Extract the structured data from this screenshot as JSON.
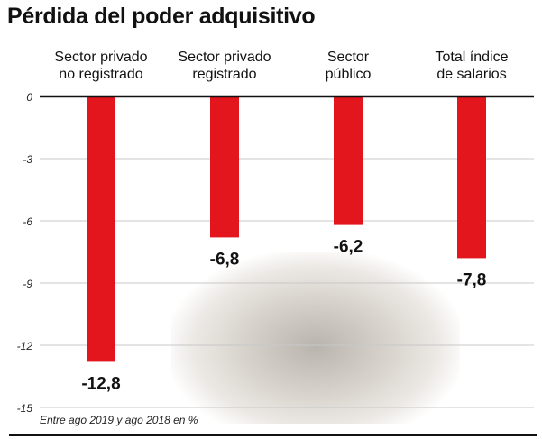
{
  "chart_data": {
    "type": "bar",
    "title": "Pérdida del poder adquisitivo",
    "categories": [
      [
        "Sector privado",
        "no registrado"
      ],
      [
        "Sector privado",
        "registrado"
      ],
      [
        "Sector",
        "público"
      ],
      [
        "Total índice",
        "de salarios"
      ]
    ],
    "values": [
      -12.8,
      -6.8,
      -6.2,
      -7.8
    ],
    "value_labels": [
      "-12,8",
      "-6,8",
      "-6,2",
      "-7,8"
    ],
    "yticks": [
      0,
      -3,
      -6,
      -9,
      -12,
      -15
    ],
    "ylim": [
      -15,
      0
    ],
    "grid": true,
    "note": "Entre ago 2019 y ago 2018 en %",
    "bar_color": "#e3151d"
  }
}
